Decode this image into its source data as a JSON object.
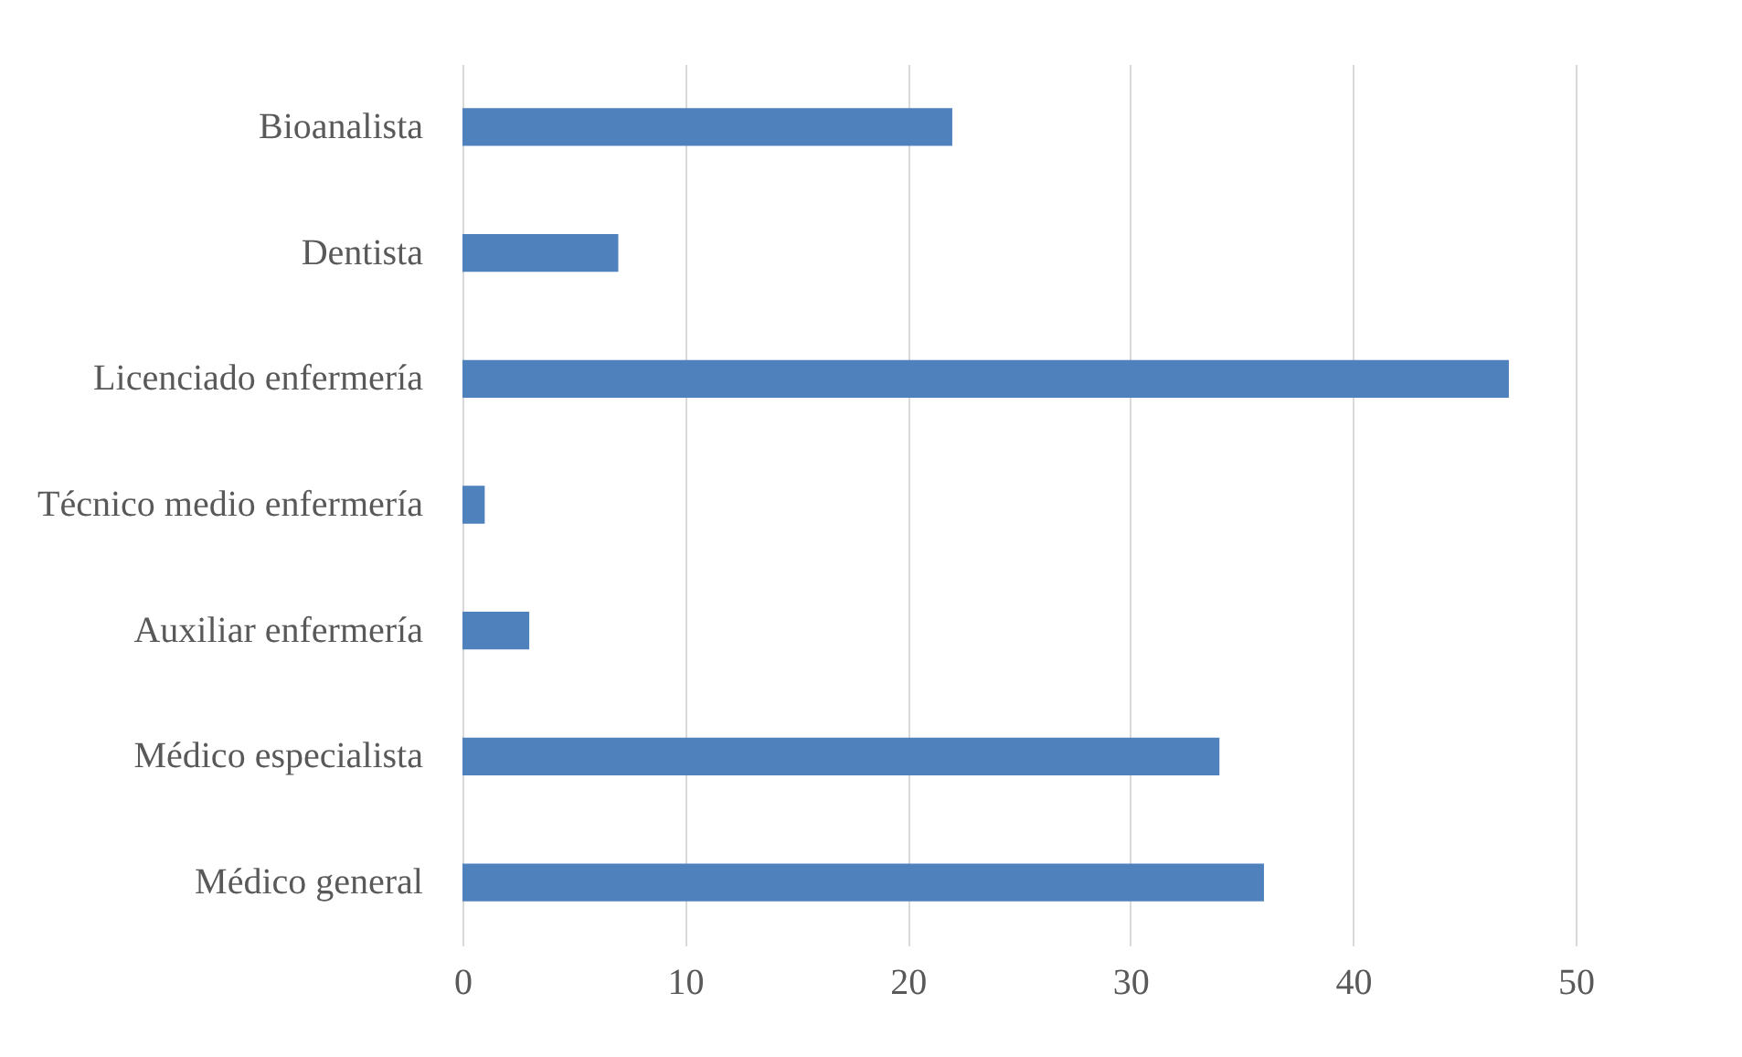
{
  "chart_data": {
    "type": "bar",
    "orientation": "horizontal",
    "categories": [
      "Bioanalista",
      "Dentista",
      "Licenciado enfermería",
      "Técnico medio enfermería",
      "Auxiliar enfermería",
      "Médico especialista",
      "Médico general"
    ],
    "values": [
      22,
      7,
      47,
      1,
      3,
      34,
      36
    ],
    "color": "#4f81bd",
    "xlim": [
      0,
      50
    ],
    "xticks": [
      0,
      10,
      20,
      30,
      40,
      50
    ],
    "grid": "x"
  }
}
